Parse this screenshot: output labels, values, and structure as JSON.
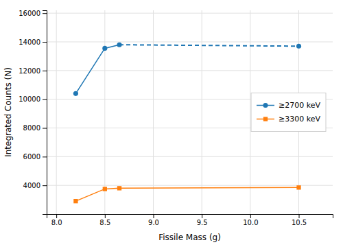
{
  "chart_data": {
    "type": "line",
    "xlabel": "Fissile Mass (g)",
    "ylabel": "Integrated Counts (N)",
    "x": [
      8.2,
      8.5,
      8.65,
      10.5
    ],
    "series": [
      {
        "name": "≥2700 keV",
        "values": [
          10400,
          13550,
          13800,
          13700
        ],
        "marker": "circle",
        "line_style": "solid-then-dashed"
      },
      {
        "name": "≥3300 keV",
        "values": [
          2900,
          3750,
          3800,
          3850
        ],
        "marker": "square",
        "line_style": "solid"
      }
    ],
    "xlim": [
      7.9,
      10.85
    ],
    "ylim": [
      2000,
      16200
    ],
    "xticks": [
      {
        "value": 8,
        "label": "8.0"
      },
      8.5,
      {
        "value": 9,
        "label": "9.0"
      },
      9.5,
      {
        "value": 10,
        "label": "10.0"
      },
      10.5
    ],
    "yticks": [
      4000,
      6000,
      8000,
      10000,
      12000,
      14000,
      16000
    ],
    "grid": true,
    "legend": "right"
  }
}
